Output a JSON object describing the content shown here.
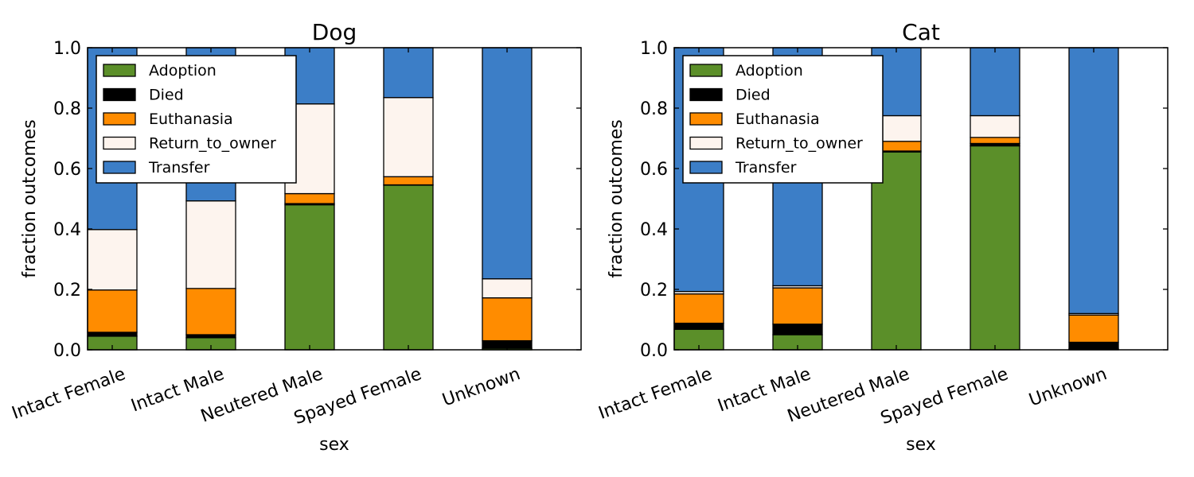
{
  "chart_data": [
    {
      "type": "bar",
      "stacked": true,
      "title": "Dog",
      "xlabel": "sex",
      "ylabel": "fraction outcomes",
      "ylim": [
        0,
        1.0
      ],
      "yticks": [
        "0.0",
        "0.2",
        "0.4",
        "0.6",
        "0.8",
        "1.0"
      ],
      "categories": [
        "Intact Female",
        "Intact Male",
        "Neutered Male",
        "Spayed Female",
        "Unknown"
      ],
      "legend_position": "upper-left",
      "series": [
        {
          "name": "Adoption",
          "color": "#5b8f29",
          "values": [
            0.045,
            0.04,
            0.48,
            0.545,
            0.005
          ]
        },
        {
          "name": "Died",
          "color": "#000000",
          "values": [
            0.013,
            0.01,
            0.004,
            0.001,
            0.025
          ]
        },
        {
          "name": "Euthanasia",
          "color": "#ff8c00",
          "values": [
            0.14,
            0.153,
            0.033,
            0.027,
            0.142
          ]
        },
        {
          "name": "Return_to_owner",
          "color": "#fdf4ee",
          "values": [
            0.2,
            0.29,
            0.297,
            0.262,
            0.063
          ]
        },
        {
          "name": "Transfer",
          "color": "#3c7ec7",
          "values": [
            0.602,
            0.507,
            0.186,
            0.165,
            0.765
          ]
        }
      ]
    },
    {
      "type": "bar",
      "stacked": true,
      "title": "Cat",
      "xlabel": "sex",
      "ylabel": "fraction outcomes",
      "ylim": [
        0,
        1.0
      ],
      "yticks": [
        "0.0",
        "0.2",
        "0.4",
        "0.6",
        "0.8",
        "1.0"
      ],
      "categories": [
        "Intact Female",
        "Intact Male",
        "Neutered Male",
        "Spayed Female",
        "Unknown"
      ],
      "legend_position": "upper-left",
      "series": [
        {
          "name": "Adoption",
          "color": "#5b8f29",
          "values": [
            0.068,
            0.05,
            0.655,
            0.675,
            0.003
          ]
        },
        {
          "name": "Died",
          "color": "#000000",
          "values": [
            0.02,
            0.035,
            0.003,
            0.008,
            0.022
          ]
        },
        {
          "name": "Euthanasia",
          "color": "#ff8c00",
          "values": [
            0.097,
            0.12,
            0.032,
            0.02,
            0.09
          ]
        },
        {
          "name": "Return_to_owner",
          "color": "#fdf4ee",
          "values": [
            0.008,
            0.007,
            0.085,
            0.072,
            0.005
          ]
        },
        {
          "name": "Transfer",
          "color": "#3c7ec7",
          "values": [
            0.807,
            0.788,
            0.225,
            0.225,
            0.88
          ]
        }
      ]
    }
  ]
}
